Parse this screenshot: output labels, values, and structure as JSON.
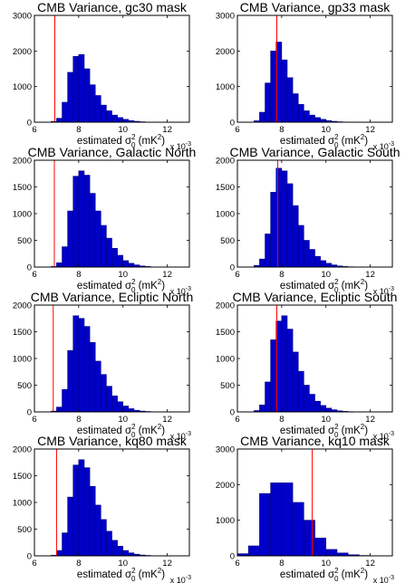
{
  "chart_data": [
    {
      "type": "bar",
      "title": "CMB Variance, gc30 mask",
      "xlabel_parts": [
        "estimated σ",
        "2",
        "0",
        " (mK",
        "2",
        ")"
      ],
      "exponent_parts": [
        "x 10",
        "-3"
      ],
      "xlim": [
        6,
        13
      ],
      "ylim": [
        0,
        3000
      ],
      "xticks": [
        6,
        8,
        10,
        12
      ],
      "xtick_labels": [
        "6",
        "8",
        "10",
        "12"
      ],
      "yticks": [
        0,
        1000,
        2000,
        3000
      ],
      "ytick_labels": [
        "0",
        "1000",
        "2000",
        "3000"
      ],
      "bin_width": 0.25,
      "bin_starts": [
        6.75,
        7.0,
        7.25,
        7.5,
        7.75,
        8.0,
        8.25,
        8.5,
        8.75,
        9.0,
        9.25,
        9.5,
        9.75,
        10.0,
        10.25,
        10.5,
        10.75,
        11.0
      ],
      "values": [
        20,
        110,
        560,
        1400,
        1850,
        1900,
        1500,
        1050,
        750,
        480,
        320,
        200,
        130,
        80,
        45,
        25,
        12,
        5
      ],
      "marker_x": 6.92,
      "colors": {
        "bar": "#0000c8",
        "edge": "#000080",
        "marker": "#ff0000"
      }
    },
    {
      "type": "bar",
      "title": "CMB Variance, gp33 mask",
      "xlabel_parts": [
        "estimated σ",
        "2",
        "0",
        " (mK",
        "2",
        ")"
      ],
      "exponent_parts": [
        "x 10",
        "-3"
      ],
      "xlim": [
        6,
        13
      ],
      "ylim": [
        0,
        3000
      ],
      "xticks": [
        6,
        8,
        10,
        12
      ],
      "xtick_labels": [
        "6",
        "8",
        "10",
        "12"
      ],
      "yticks": [
        0,
        1000,
        2000,
        3000
      ],
      "ytick_labels": [
        "0",
        "1000",
        "2000",
        "3000"
      ],
      "bin_width": 0.25,
      "bin_starts": [
        6.75,
        7.0,
        7.25,
        7.5,
        7.75,
        8.0,
        8.25,
        8.5,
        8.75,
        9.0,
        9.25,
        9.5,
        9.75,
        10.0,
        10.25,
        10.5,
        10.75,
        11.0
      ],
      "values": [
        40,
        280,
        1100,
        2000,
        2250,
        1750,
        1250,
        800,
        500,
        320,
        200,
        130,
        80,
        45,
        25,
        12,
        6,
        3
      ],
      "marker_x": 7.78,
      "colors": {
        "bar": "#0000c8",
        "edge": "#000080",
        "marker": "#ff0000"
      }
    },
    {
      "type": "bar",
      "title": "CMB Variance, Galactic North",
      "xlabel_parts": [
        "estimated σ",
        "2",
        "0",
        " (mK",
        "2",
        ")"
      ],
      "exponent_parts": [
        "x 10",
        "-3"
      ],
      "xlim": [
        6,
        13
      ],
      "ylim": [
        0,
        2000
      ],
      "xticks": [
        6,
        8,
        10,
        12
      ],
      "xtick_labels": [
        "6",
        "8",
        "10",
        "12"
      ],
      "yticks": [
        0,
        500,
        1000,
        1500,
        2000
      ],
      "ytick_labels": [
        "0",
        "500",
        "1000",
        "1500",
        "2000"
      ],
      "bin_width": 0.25,
      "bin_starts": [
        6.75,
        7.0,
        7.25,
        7.5,
        7.75,
        8.0,
        8.25,
        8.5,
        8.75,
        9.0,
        9.25,
        9.5,
        9.75,
        10.0,
        10.25,
        10.5,
        10.75,
        11.0
      ],
      "values": [
        10,
        80,
        380,
        1050,
        1700,
        1800,
        1720,
        1380,
        1050,
        780,
        540,
        350,
        220,
        120,
        70,
        40,
        20,
        10
      ],
      "marker_x": 6.9,
      "colors": {
        "bar": "#0000c8",
        "edge": "#000080",
        "marker": "#ff0000"
      }
    },
    {
      "type": "bar",
      "title": "CMB Variance, Galactic South",
      "xlabel_parts": [
        "estimated σ",
        "2",
        "0",
        " (mK",
        "2",
        ")"
      ],
      "exponent_parts": [
        "x 10",
        "-3"
      ],
      "xlim": [
        6,
        13
      ],
      "ylim": [
        0,
        2000
      ],
      "xticks": [
        6,
        8,
        10,
        12
      ],
      "xtick_labels": [
        "6",
        "8",
        "10",
        "12"
      ],
      "yticks": [
        0,
        500,
        1000,
        1500,
        2000
      ],
      "ytick_labels": [
        "0",
        "500",
        "1000",
        "1500",
        "2000"
      ],
      "bin_width": 0.25,
      "bin_starts": [
        6.75,
        7.0,
        7.25,
        7.5,
        7.75,
        8.0,
        8.25,
        8.5,
        8.75,
        9.0,
        9.25,
        9.5,
        9.75,
        10.0,
        10.25,
        10.5,
        10.75,
        11.0
      ],
      "values": [
        30,
        150,
        620,
        1400,
        1850,
        1800,
        1560,
        1150,
        780,
        500,
        330,
        200,
        120,
        70,
        40,
        20,
        10,
        5
      ],
      "marker_x": 7.82,
      "colors": {
        "bar": "#0000c8",
        "edge": "#000080",
        "marker": "#ff0000"
      }
    },
    {
      "type": "bar",
      "title": "CMB Variance, Ecliptic North",
      "xlabel_parts": [
        "estimated σ",
        "2",
        "0",
        " (mK",
        "2",
        ")"
      ],
      "exponent_parts": [
        "x 10",
        "-3"
      ],
      "xlim": [
        6,
        13
      ],
      "ylim": [
        0,
        2000
      ],
      "xticks": [
        6,
        8,
        10,
        12
      ],
      "xtick_labels": [
        "6",
        "8",
        "10",
        "12"
      ],
      "yticks": [
        0,
        500,
        1000,
        1500,
        2000
      ],
      "ytick_labels": [
        "0",
        "500",
        "1000",
        "1500",
        "2000"
      ],
      "bin_width": 0.25,
      "bin_starts": [
        6.75,
        7.0,
        7.25,
        7.5,
        7.75,
        8.0,
        8.25,
        8.5,
        8.75,
        9.0,
        9.25,
        9.5,
        9.75,
        10.0,
        10.25,
        10.5,
        10.75,
        11.0
      ],
      "values": [
        15,
        90,
        420,
        1150,
        1800,
        1750,
        1600,
        1300,
        950,
        700,
        480,
        300,
        190,
        110,
        60,
        30,
        15,
        8
      ],
      "marker_x": 6.85,
      "colors": {
        "bar": "#0000c8",
        "edge": "#000080",
        "marker": "#ff0000"
      }
    },
    {
      "type": "bar",
      "title": "CMB Variance, Ecliptic South",
      "xlabel_parts": [
        "estimated σ",
        "2",
        "0",
        " (mK",
        "2",
        ")"
      ],
      "exponent_parts": [
        "x 10",
        "-3"
      ],
      "xlim": [
        6,
        13
      ],
      "ylim": [
        0,
        2000
      ],
      "xticks": [
        6,
        8,
        10,
        12
      ],
      "xtick_labels": [
        "6",
        "8",
        "10",
        "12"
      ],
      "yticks": [
        0,
        500,
        1000,
        1500,
        2000
      ],
      "ytick_labels": [
        "0",
        "500",
        "1000",
        "1500",
        "2000"
      ],
      "bin_width": 0.25,
      "bin_starts": [
        6.75,
        7.0,
        7.25,
        7.5,
        7.75,
        8.0,
        8.25,
        8.5,
        8.75,
        9.0,
        9.25,
        9.5,
        9.75,
        10.0,
        10.25,
        10.5,
        10.75,
        11.0
      ],
      "values": [
        25,
        130,
        560,
        1350,
        1700,
        1800,
        1550,
        1120,
        760,
        500,
        330,
        200,
        120,
        70,
        40,
        20,
        10,
        5
      ],
      "marker_x": 7.78,
      "colors": {
        "bar": "#0000c8",
        "edge": "#000080",
        "marker": "#ff0000"
      }
    },
    {
      "type": "bar",
      "title": "CMB Variance, kq80 mask",
      "xlabel_parts": [
        "estimated σ",
        "2",
        "0",
        " (mK",
        "2",
        ")"
      ],
      "exponent_parts": [
        "x 10",
        "-3"
      ],
      "xlim": [
        6,
        13
      ],
      "ylim": [
        0,
        2000
      ],
      "xticks": [
        6,
        8,
        10,
        12
      ],
      "xtick_labels": [
        "6",
        "8",
        "10",
        "12"
      ],
      "yticks": [
        0,
        500,
        1000,
        1500,
        2000
      ],
      "ytick_labels": [
        "0",
        "500",
        "1000",
        "1500",
        "2000"
      ],
      "bin_width": 0.25,
      "bin_starts": [
        6.75,
        7.0,
        7.25,
        7.5,
        7.75,
        8.0,
        8.25,
        8.5,
        8.75,
        9.0,
        9.25,
        9.5,
        9.75,
        10.0,
        10.25,
        10.5,
        10.75,
        11.0
      ],
      "values": [
        10,
        100,
        430,
        1100,
        1700,
        1800,
        1650,
        1300,
        950,
        680,
        460,
        290,
        180,
        100,
        55,
        30,
        15,
        8
      ],
      "marker_x": 7.0,
      "colors": {
        "bar": "#0000c8",
        "edge": "#000080",
        "marker": "#ff0000"
      }
    },
    {
      "type": "bar",
      "title": "CMB Variance, kq10 mask",
      "xlabel_parts": [
        "estimated σ",
        "2",
        "0",
        " (mK",
        "2",
        ")"
      ],
      "exponent_parts": [
        "x 10",
        "-3"
      ],
      "xlim": [
        6,
        13
      ],
      "ylim": [
        0,
        3000
      ],
      "xticks": [
        6,
        8,
        10,
        12
      ],
      "xtick_labels": [
        "6",
        "8",
        "10",
        "12"
      ],
      "yticks": [
        0,
        1000,
        2000,
        3000
      ],
      "ytick_labels": [
        "0",
        "1000",
        "2000",
        "3000"
      ],
      "bin_width": 0.5,
      "bin_starts": [
        6.0,
        6.5,
        7.0,
        7.5,
        8.0,
        8.5,
        9.0,
        9.5,
        10.0,
        10.5,
        11.0,
        11.5
      ],
      "values": [
        60,
        280,
        1750,
        2050,
        2050,
        1500,
        1000,
        500,
        180,
        80,
        30,
        10
      ],
      "marker_x": 9.38,
      "colors": {
        "bar": "#0000c8",
        "edge": "#000080",
        "marker": "#ff0000"
      }
    }
  ]
}
